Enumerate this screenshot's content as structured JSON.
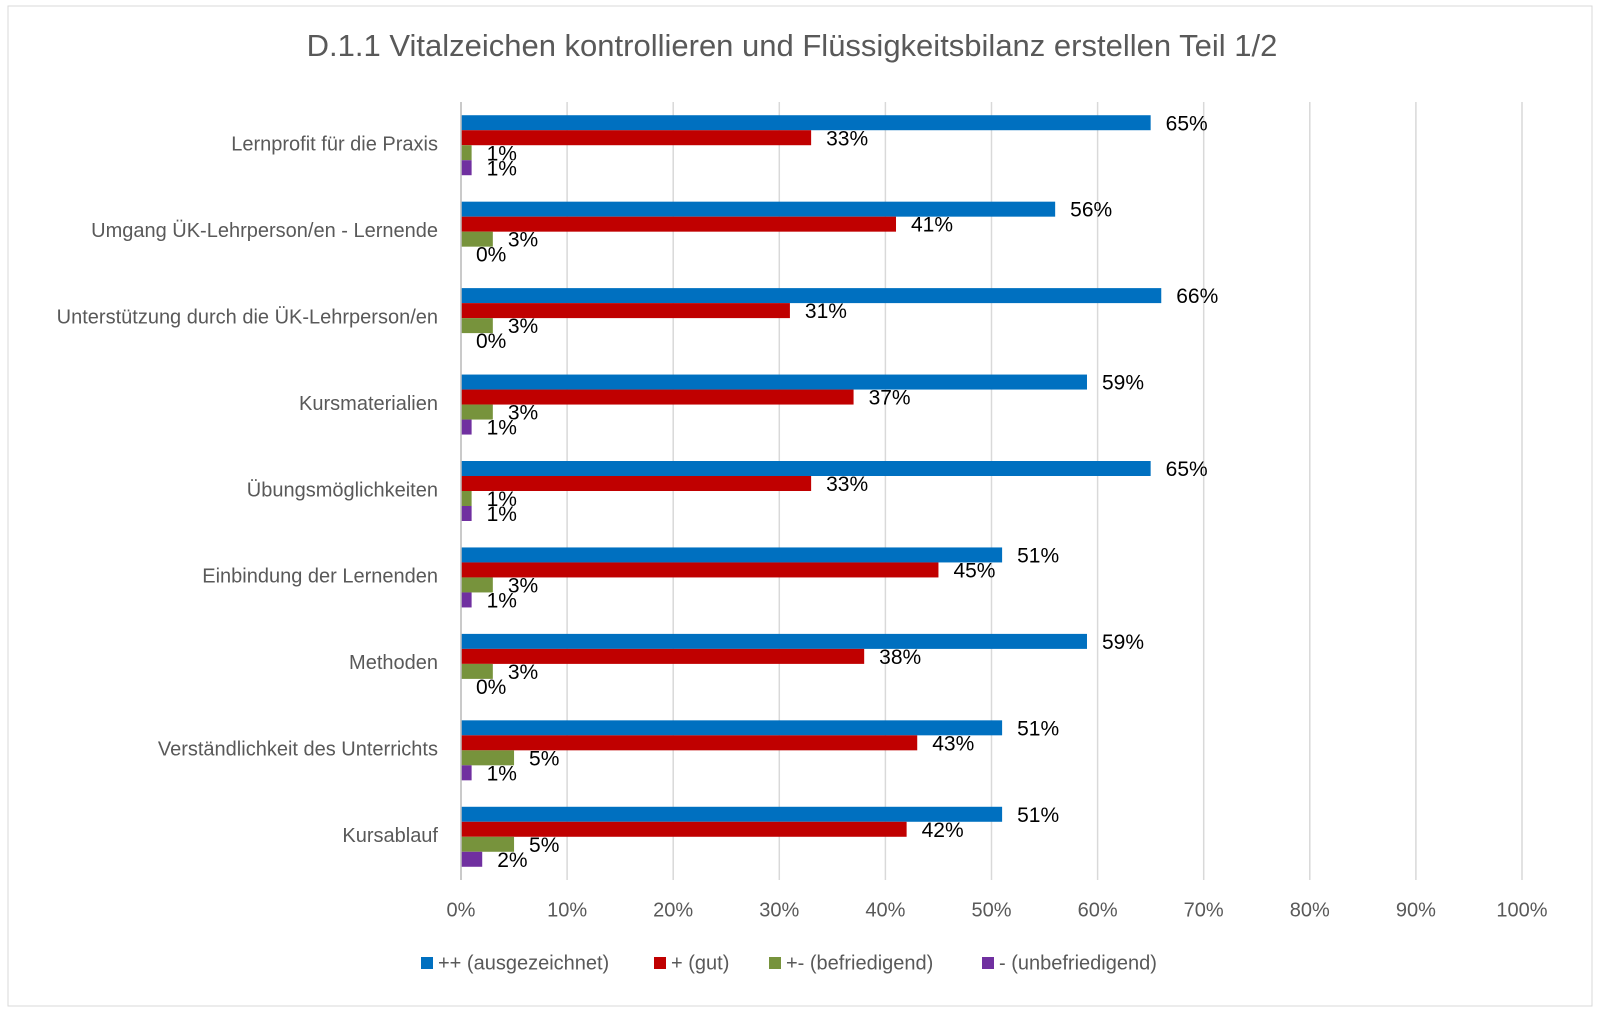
{
  "chart_data": {
    "type": "bar",
    "orientation": "horizontal",
    "title": "D.1.1 Vitalzeichen kontrollieren und Flüssigkeitsbilanz erstellen Teil 1/2",
    "categories": [
      "Lernprofit für die Praxis",
      "Umgang ÜK-Lehrperson/en - Lernende",
      "Unterstützung durch die ÜK-Lehrperson/en",
      "Kursmaterialien",
      "Übungsmöglichkeiten",
      "Einbindung der Lernenden",
      "Methoden",
      "Verständlichkeit des Unterrichts",
      "Kursablauf"
    ],
    "series": [
      {
        "name": "++ (ausgezeichnet)",
        "color": "#0070c0",
        "values": [
          65,
          56,
          66,
          59,
          65,
          51,
          59,
          51,
          51
        ],
        "value_labels": [
          "65%",
          "56%",
          "66%",
          "59%",
          "65%",
          "51%",
          "59%",
          "51%",
          "51%"
        ]
      },
      {
        "name": "+ (gut)",
        "color": "#c00000",
        "values": [
          33,
          41,
          31,
          37,
          33,
          45,
          38,
          43,
          42
        ],
        "value_labels": [
          "33%",
          "41%",
          "31%",
          "37%",
          "33%",
          "45%",
          "38%",
          "43%",
          "42%"
        ]
      },
      {
        "name": "+- (befriedigend)",
        "color": "#77933c",
        "values": [
          1,
          3,
          3,
          3,
          1,
          3,
          3,
          5,
          5
        ],
        "value_labels": [
          "1%",
          "3%",
          "3%",
          "3%",
          "1%",
          "3%",
          "3%",
          "5%",
          "5%"
        ]
      },
      {
        "name": "- (unbefriedigend)",
        "color": "#7030a0",
        "values": [
          1,
          0,
          0,
          1,
          1,
          1,
          0,
          1,
          2
        ],
        "value_labels": [
          "1%",
          "0%",
          "0%",
          "1%",
          "1%",
          "1%",
          "0%",
          "1%",
          "2%"
        ]
      }
    ],
    "xlim": [
      0,
      100
    ],
    "xticks": [
      {
        "value": 0,
        "label": "0%"
      },
      {
        "value": 10,
        "label": "10%"
      },
      {
        "value": 20,
        "label": "20%"
      },
      {
        "value": 30,
        "label": "30%"
      },
      {
        "value": 40,
        "label": "40%"
      },
      {
        "value": 50,
        "label": "50%"
      },
      {
        "value": 60,
        "label": "60%"
      },
      {
        "value": 70,
        "label": "70%"
      },
      {
        "value": 80,
        "label": "80%"
      },
      {
        "value": 90,
        "label": "90%"
      },
      {
        "value": 100,
        "label": "100%"
      }
    ],
    "grid": true,
    "legend": "bottom"
  }
}
